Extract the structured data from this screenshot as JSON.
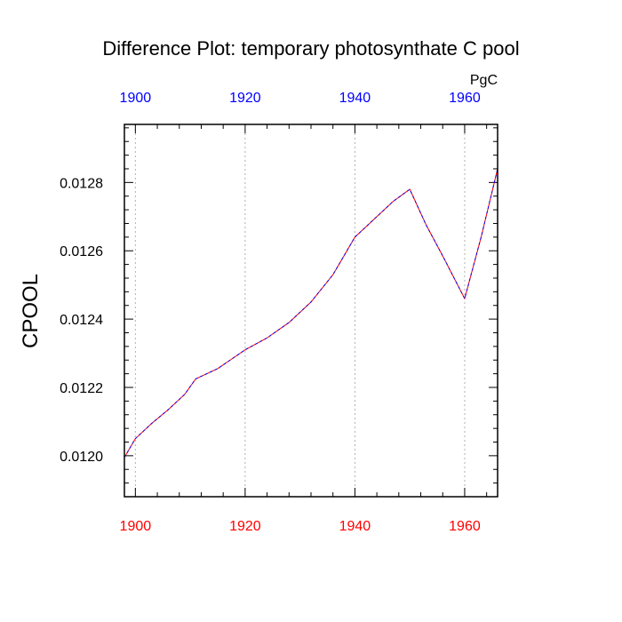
{
  "chart_data": {
    "type": "line",
    "title": "Difference Plot: temporary photosynthate C pool",
    "ylabel": "CPOOL",
    "units_label": "PgC",
    "xlim": [
      1898,
      1966
    ],
    "ylim": [
      0.01188,
      0.01297
    ],
    "x_ticks_bottom": [
      1900,
      1920,
      1940,
      1960
    ],
    "x_ticks_top": [
      1900,
      1920,
      1940,
      1960
    ],
    "y_ticks": [
      0.012,
      0.0122,
      0.0124,
      0.0126,
      0.0128
    ],
    "y_tick_labels": [
      "0.0120",
      "0.0122",
      "0.0124",
      "0.0126",
      "0.0128"
    ],
    "x_tick_labels_bottom": [
      "1900",
      "1920",
      "1940",
      "1960"
    ],
    "x_tick_labels_top": [
      "1900",
      "1920",
      "1940",
      "1960"
    ],
    "grid": "vertical dotted at major x ticks",
    "colors": {
      "bottom_axis_labels": "#ff0000",
      "top_axis_labels": "#0000ff",
      "line_primary": "#ff0000",
      "line_secondary": "#0000ff",
      "grid": "#b0b0b0"
    },
    "series": [
      {
        "x": [
          1898,
          1900,
          1903,
          1906,
          1909,
          1911,
          1915,
          1920,
          1924,
          1928,
          1932,
          1936,
          1940,
          1944,
          1947,
          1950,
          1953,
          1956,
          1960,
          1963,
          1966
        ],
        "values": [
          0.011995,
          0.01205,
          0.012095,
          0.012135,
          0.01218,
          0.012225,
          0.012255,
          0.01231,
          0.012345,
          0.01239,
          0.01245,
          0.01253,
          0.01264,
          0.0127,
          0.012745,
          0.01278,
          0.012675,
          0.012585,
          0.01246,
          0.01264,
          0.01284
        ]
      }
    ]
  }
}
